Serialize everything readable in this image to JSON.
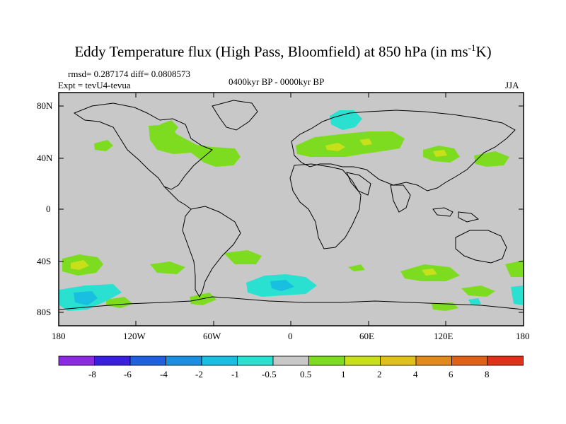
{
  "title": {
    "main": "Eddy Temperature flux (High Pass, Bloomfield) at 850 hPa (in ms",
    "sup": "-1",
    "end": "K)"
  },
  "stats": "rmsd= 0.287174 diff= 0.0808573",
  "expt": "Expt = tevU4-tevua",
  "period": "0400kyr BP - 0000kyr BP",
  "season": "JJA",
  "y_ticks": [
    "80N",
    "40N",
    "0",
    "40S",
    "80S"
  ],
  "x_ticks": [
    "180",
    "120W",
    "60W",
    "0",
    "60E",
    "120E",
    "180"
  ],
  "colorbar": {
    "labels": [
      "-8",
      "-6",
      "-4",
      "-2",
      "-1",
      "-0.5",
      "0.5",
      "1",
      "2",
      "4",
      "6",
      "8"
    ],
    "colors": [
      "#8a2be2",
      "#3a1fe0",
      "#1f5fe0",
      "#1a8fe0",
      "#18bfe0",
      "#2ae0d0",
      "#c8c8c8",
      "#7ddc1f",
      "#c8e01a",
      "#e0c01a",
      "#e08a1a",
      "#e0601a",
      "#e0301a"
    ]
  },
  "colors": {
    "land_bg": "#c8c8c8",
    "pos1": "#7ddc1f",
    "pos2": "#c8e01a",
    "neg1": "#2ae0d0",
    "neg2": "#18bfe0"
  }
}
